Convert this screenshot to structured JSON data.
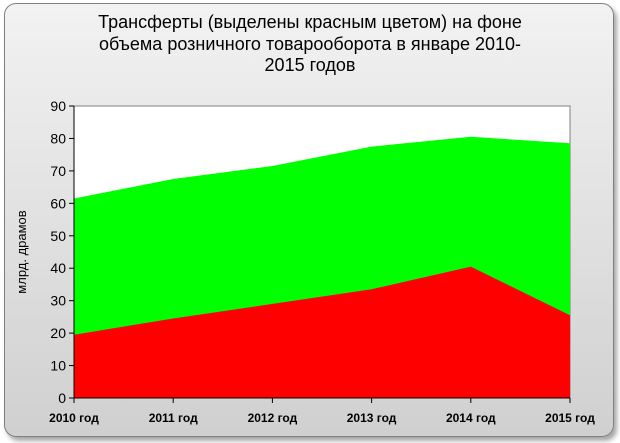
{
  "chart_data": {
    "type": "area",
    "title": "Трансферты (выделены красным цветом) на фоне объема розничного товарооборота в январе 2010-2015 годов",
    "title_lines": [
      "Трансферты (выделены красным цветом) на фоне",
      "объема розничного товарооборота в январе 2010-",
      "2015 годов"
    ],
    "xlabel": "",
    "ylabel": "млрд. драмов",
    "ylim": [
      0,
      90
    ],
    "yticks": [
      0,
      10,
      20,
      30,
      40,
      50,
      60,
      70,
      80,
      90
    ],
    "categories": [
      "2010 год",
      "2011 год",
      "2012 год",
      "2013 год",
      "2014 год",
      "2015 год"
    ],
    "grid": false,
    "legend": "none",
    "series": [
      {
        "values": [
          61.5,
          67.5,
          71.5,
          77.5,
          80.5,
          78.5
        ],
        "color": "#00ff00"
      },
      {
        "values": [
          19.5,
          24.5,
          29,
          33.5,
          40.5,
          25.5
        ],
        "color": "#ff0000"
      }
    ]
  }
}
